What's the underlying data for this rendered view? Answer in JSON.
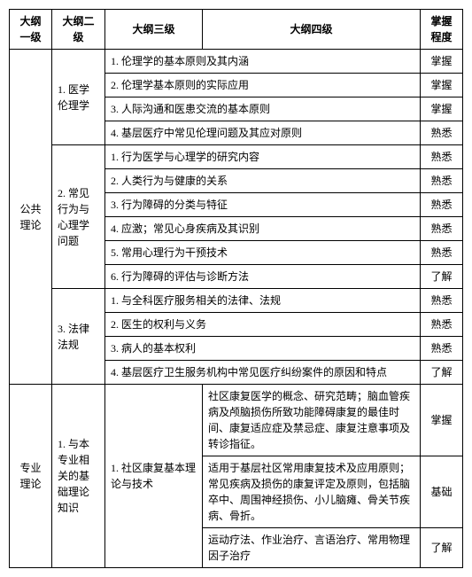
{
  "headers": {
    "l1": "大纲一级",
    "l2": "大纲二级",
    "l3": "大纲三级",
    "l4": "大纲四级",
    "mastery": "掌握程度"
  },
  "rows": [
    {
      "l1": "公共理论",
      "l1_rowspan": 13,
      "l2": "1. 医学伦理学",
      "l2_rowspan": 4,
      "l3": "1. 伦理学的基本原则及其内涵",
      "l3_rowspan": 1,
      "l4": "",
      "mastery": "掌握"
    },
    {
      "l3": "2. 伦理学基本原则的实际应用",
      "l3_rowspan": 1,
      "l4": "",
      "mastery": "掌握"
    },
    {
      "l3": "3. 人际沟通和医患交流的基本原则",
      "l3_rowspan": 1,
      "l4": "",
      "mastery": "掌握"
    },
    {
      "l3": "4. 基层医疗中常见伦理问题及其应对原则",
      "l3_rowspan": 1,
      "l4": "",
      "mastery": "熟悉"
    },
    {
      "l2": "2. 常见行为与心理学问题",
      "l2_rowspan": 6,
      "l3": "1. 行为医学与心理学的研究内容",
      "l3_rowspan": 1,
      "l4": "",
      "mastery": "熟悉"
    },
    {
      "l3": "2. 人类行为与健康的关系",
      "l3_rowspan": 1,
      "l4": "",
      "mastery": "熟悉"
    },
    {
      "l3": "3. 行为障碍的分类与特征",
      "l3_rowspan": 1,
      "l4": "",
      "mastery": "熟悉"
    },
    {
      "l3": "4. 应激；常见心身疾病及其识别",
      "l3_rowspan": 1,
      "l4": "",
      "mastery": "熟悉"
    },
    {
      "l3": "5. 常用心理行为干预技术",
      "l3_rowspan": 1,
      "l4": "",
      "mastery": "熟悉"
    },
    {
      "l3": "6. 行为障碍的评估与诊断方法",
      "l3_rowspan": 1,
      "l4": "",
      "mastery": "了解"
    },
    {
      "l2": "3. 法律法规",
      "l2_rowspan": 3,
      "l3": "1. 与全科医疗服务相关的法律、法规",
      "l3_rowspan": 1,
      "l4": "",
      "mastery": "熟悉"
    },
    {
      "l3_pair": true,
      "l3a": "2. 医生的权利与义务",
      "masterya": "熟悉",
      "l3b": "3. 病人的基本权利",
      "masteryb": "熟悉"
    },
    {
      "l3": "4. 基层医疗卫生服务机构中常见医疗纠纷案件的原因和特点",
      "l3_rowspan": 1,
      "l4": "",
      "mastery": "了解"
    },
    {
      "l1": "专业理论",
      "l1_rowspan": 3,
      "l2": "1. 与本专业相关的基础理论知识",
      "l2_rowspan": 3,
      "l3": "1. 社区康复基本理论与技术",
      "l3_rowspan": 3,
      "l4": "社区康复医学的概念、研究范畴；脑血管疾病及颅脑损伤所致功能障碍康复的最佳时间、康复适应症及禁忌症、康复注意事项及转诊指征。",
      "mastery": "掌握"
    },
    {
      "l4": "适用于基层社区常用康复技术及应用原则；常见疾病及损伤的康复评定及原则，包括脑卒中、周围神经损伤、小儿脑瘫、骨关节疾病、骨折。",
      "mastery": "基础"
    },
    {
      "l4": "运动疗法、作业治疗、言语治疗、常用物理因子治疗",
      "mastery": "了解"
    }
  ]
}
